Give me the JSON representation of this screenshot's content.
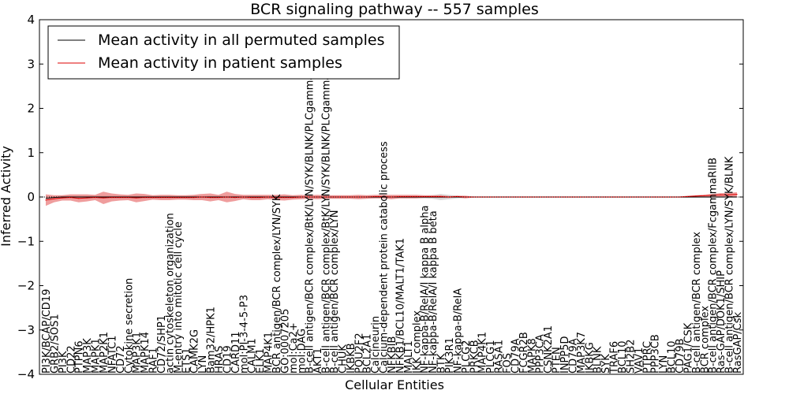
{
  "chart_data": {
    "type": "line",
    "title": "BCR signaling pathway -- 557 samples",
    "xlabel": "Cellular Entities",
    "ylabel": "Inferred Activity",
    "ylim": [
      -4,
      4
    ],
    "yticks": [
      -4,
      -3,
      -2,
      -1,
      0,
      1,
      2,
      3,
      4
    ],
    "ytick_labels": [
      "−4",
      "−3",
      "−2",
      "−1",
      "0",
      "1",
      "2",
      "3",
      "4"
    ],
    "grid": false,
    "legend": {
      "placement": "top-left",
      "entries": [
        {
          "label": "Mean activity in all permuted samples",
          "color": "#000000"
        },
        {
          "label": "Mean activity in patient samples",
          "color": "#dd0000"
        }
      ]
    },
    "colors": {
      "permuted": "#000000",
      "patient": "#dd0000",
      "band": "#e87474",
      "permuted_band": "#bbbbbb"
    },
    "categories": [
      "PI3K/BCAP/CD19",
      "GRB2/SOS1",
      "PI3K",
      "CD22",
      "PTPN6",
      "MAP3K",
      "MAPK1",
      "MAP2K1",
      "NFATC1",
      "CD72",
      "Cytokine secretion",
      "MAP3K1",
      "MAPK14",
      "RAF1",
      "CD72/SHP1",
      "actin cytoskeleton organization",
      "M-entry into mitotic cell cycle",
      "ETS1",
      "CAMK2G",
      "LYN",
      "Bam32/HPK1",
      "HRAS",
      "CD19",
      "CARD11",
      "mol:PI-3-4-5-P3",
      "CALM1",
      "ELK1",
      "MAP4K1",
      "BCR antigen/BCR complex/LYN/SYK",
      "GO:0007205",
      "mol:Ca2+",
      "mol:DAG",
      "B-cell antigen/BCR complex/BtK/LYN/SYK/BLNK/PLCgamma2",
      "AKT1",
      "B-cell antigen/BCR complex/BtK/LYN/SYK/BLNK/PLCgamma2",
      "B-cell antigen/BCR complex/LYN",
      "CHUK",
      "IKBKB",
      "POU2F2",
      "BCL2A1",
      "Calcineurin",
      "Calcium-dependent protein catabolic process",
      "NFKBIB",
      "NFKB1/BCL10/MALT1/TAK1",
      "MALT1",
      "IKK complex",
      "NF-kappa-B/RelA/I kappa B alpha",
      "NF-kappa-B/RelA/I kappa B beta",
      "BTK",
      "PIK3R1",
      "NF-kappa-B/RelA",
      "PLCG2",
      "PRKCB",
      "MAP4K1",
      "PLCG1",
      "RASA1",
      "FOS",
      "CD79A",
      "FCGR2B",
      "MAPK8",
      "PPP3CA",
      "CSNK2A1",
      "PTEN",
      "INPP5D",
      "CD79A",
      "MAP3K7",
      "IKBKG",
      "BLNK",
      "SYK",
      "TRAF6",
      "BCL10",
      "SH2B2",
      "VAV1",
      "PTPRC",
      "PPP3CB",
      "LYN",
      "BCL10",
      "CD79B",
      "PAG1/CSK",
      "B-cell antigen/BCR complex",
      "BCR complex",
      "B-cell antigen/BCR complex/FcgammaRIIB",
      "Ras-GAP/DOK1/SHIP",
      "B-cell antigen/BCR complex/LYN/SYK/BLNK",
      "RasGAP/Csk"
    ],
    "series": [
      {
        "name": "Mean activity in patient samples",
        "values": [
          -0.07,
          -0.04,
          -0.02,
          -0.01,
          -0.03,
          -0.02,
          -0.01,
          -0.02,
          -0.01,
          -0.01,
          -0.01,
          -0.02,
          -0.01,
          -0.01,
          -0.01,
          -0.01,
          -0.01,
          -0.01,
          -0.01,
          0.0,
          -0.01,
          -0.01,
          0.0,
          -0.01,
          0.0,
          -0.01,
          -0.01,
          0.0,
          -0.01,
          -0.01,
          -0.01,
          0.0,
          0.0,
          0.0,
          0.0,
          0.0,
          0.0,
          0.0,
          0.0,
          0.0,
          0.01,
          0.01,
          0.0,
          0.01,
          0.01,
          0.01,
          0.01,
          0.01,
          0.01,
          0.0,
          0.01,
          0.0,
          0.0,
          0.0,
          0.0,
          0.0,
          0.0,
          0.0,
          0.0,
          0.0,
          0.0,
          0.0,
          0.0,
          0.0,
          0.0,
          0.0,
          0.0,
          0.0,
          0.0,
          0.0,
          0.0,
          0.0,
          0.0,
          0.0,
          0.0,
          0.0,
          0.0,
          0.0,
          0.01,
          0.02,
          0.03,
          0.04,
          0.05,
          0.05,
          0.06
        ],
        "band": [
          0.13,
          0.08,
          0.06,
          0.07,
          0.09,
          0.08,
          0.06,
          0.14,
          0.09,
          0.07,
          0.06,
          0.1,
          0.08,
          0.05,
          0.06,
          0.06,
          0.05,
          0.05,
          0.06,
          0.07,
          0.09,
          0.06,
          0.12,
          0.08,
          0.05,
          0.06,
          0.06,
          0.05,
          0.06,
          0.07,
          0.05,
          0.05,
          0.04,
          0.05,
          0.04,
          0.04,
          0.04,
          0.04,
          0.05,
          0.04,
          0.04,
          0.04,
          0.05,
          0.04,
          0.04,
          0.04,
          0.03,
          0.03,
          0.03,
          0.02,
          0.02,
          0.03,
          0.01,
          0.01,
          0.01,
          0.01,
          0.01,
          0.01,
          0.01,
          0.01,
          0.01,
          0.01,
          0.01,
          0.01,
          0.01,
          0.01,
          0.01,
          0.01,
          0.01,
          0.01,
          0.01,
          0.01,
          0.01,
          0.01,
          0.01,
          0.01,
          0.01,
          0.01,
          0.02,
          0.02,
          0.02,
          0.03,
          0.04,
          0.04,
          0.05
        ]
      },
      {
        "name": "Mean activity in all permuted samples",
        "values": [
          -0.03,
          -0.01,
          0.0,
          0.0,
          0.0,
          0.0,
          0.0,
          0.0,
          0.0,
          0.0,
          0.0,
          0.0,
          0.0,
          0.0,
          0.0,
          0.0,
          0.0,
          0.0,
          0.0,
          0.0,
          0.0,
          0.0,
          0.0,
          0.0,
          0.0,
          0.0,
          0.0,
          0.0,
          0.0,
          0.0,
          0.0,
          0.0,
          0.0,
          0.0,
          0.0,
          0.0,
          0.0,
          0.0,
          0.0,
          0.0,
          0.0,
          0.0,
          0.0,
          0.0,
          0.0,
          0.0,
          0.0,
          0.0,
          0.0,
          0.0,
          0.0,
          0.0,
          0.0,
          0.0,
          0.0,
          0.0,
          0.0,
          0.0,
          0.0,
          0.0,
          0.0,
          0.0,
          0.0,
          0.0,
          0.0,
          0.0,
          0.0,
          0.0,
          0.0,
          0.0,
          0.0,
          0.0,
          0.0,
          0.0,
          0.0,
          0.0,
          0.0,
          0.0,
          0.0,
          0.0,
          0.0,
          0.0,
          0.0,
          0.0,
          0.0
        ],
        "band": [
          0.04,
          0.03,
          0.03,
          0.03,
          0.03,
          0.03,
          0.03,
          0.03,
          0.03,
          0.03,
          0.03,
          0.03,
          0.03,
          0.03,
          0.03,
          0.03,
          0.03,
          0.03,
          0.03,
          0.03,
          0.03,
          0.03,
          0.03,
          0.03,
          0.03,
          0.03,
          0.03,
          0.03,
          0.03,
          0.03,
          0.03,
          0.03,
          0.03,
          0.03,
          0.03,
          0.03,
          0.03,
          0.03,
          0.03,
          0.03,
          0.03,
          0.03,
          0.03,
          0.03,
          0.03,
          0.03,
          0.03,
          0.04,
          0.07,
          0.05,
          0.03,
          0.02,
          0.02,
          0.02,
          0.02,
          0.02,
          0.02,
          0.02,
          0.02,
          0.02,
          0.02,
          0.02,
          0.02,
          0.02,
          0.02,
          0.02,
          0.02,
          0.02,
          0.02,
          0.02,
          0.02,
          0.02,
          0.02,
          0.02,
          0.02,
          0.02,
          0.02,
          0.02,
          0.02,
          0.02,
          0.02,
          0.02,
          0.02,
          0.02,
          0.02
        ]
      }
    ]
  }
}
